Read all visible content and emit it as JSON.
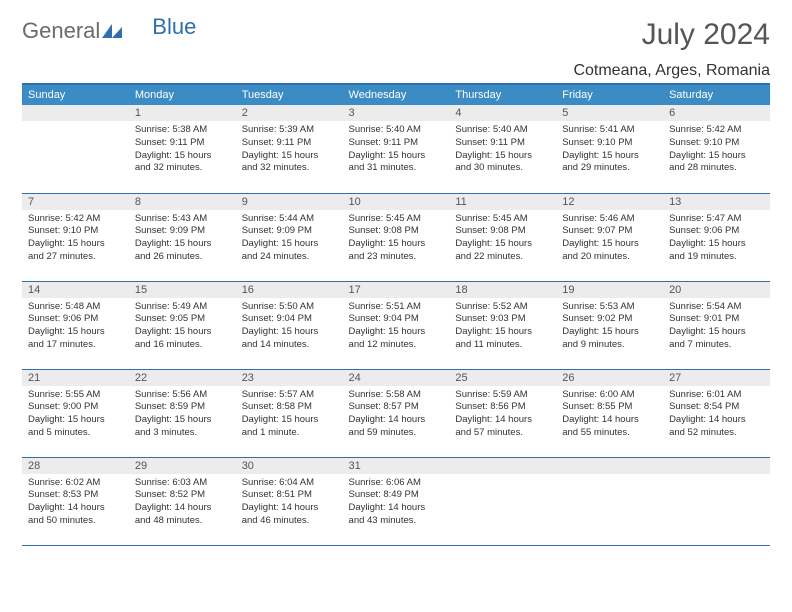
{
  "logo": {
    "word1": "General",
    "word2": "Blue"
  },
  "title": "July 2024",
  "location": "Cotmeana, Arges, Romania",
  "colors": {
    "header_bg": "#3b8bc4",
    "header_text": "#ffffff",
    "rule": "#2f6fab",
    "daynum_bg": "#ececec",
    "text": "#333333",
    "title_text": "#555555"
  },
  "day_headers": [
    "Sunday",
    "Monday",
    "Tuesday",
    "Wednesday",
    "Thursday",
    "Friday",
    "Saturday"
  ],
  "weeks": [
    [
      {
        "num": "",
        "lines": []
      },
      {
        "num": "1",
        "lines": [
          "Sunrise: 5:38 AM",
          "Sunset: 9:11 PM",
          "Daylight: 15 hours",
          "and 32 minutes."
        ]
      },
      {
        "num": "2",
        "lines": [
          "Sunrise: 5:39 AM",
          "Sunset: 9:11 PM",
          "Daylight: 15 hours",
          "and 32 minutes."
        ]
      },
      {
        "num": "3",
        "lines": [
          "Sunrise: 5:40 AM",
          "Sunset: 9:11 PM",
          "Daylight: 15 hours",
          "and 31 minutes."
        ]
      },
      {
        "num": "4",
        "lines": [
          "Sunrise: 5:40 AM",
          "Sunset: 9:11 PM",
          "Daylight: 15 hours",
          "and 30 minutes."
        ]
      },
      {
        "num": "5",
        "lines": [
          "Sunrise: 5:41 AM",
          "Sunset: 9:10 PM",
          "Daylight: 15 hours",
          "and 29 minutes."
        ]
      },
      {
        "num": "6",
        "lines": [
          "Sunrise: 5:42 AM",
          "Sunset: 9:10 PM",
          "Daylight: 15 hours",
          "and 28 minutes."
        ]
      }
    ],
    [
      {
        "num": "7",
        "lines": [
          "Sunrise: 5:42 AM",
          "Sunset: 9:10 PM",
          "Daylight: 15 hours",
          "and 27 minutes."
        ]
      },
      {
        "num": "8",
        "lines": [
          "Sunrise: 5:43 AM",
          "Sunset: 9:09 PM",
          "Daylight: 15 hours",
          "and 26 minutes."
        ]
      },
      {
        "num": "9",
        "lines": [
          "Sunrise: 5:44 AM",
          "Sunset: 9:09 PM",
          "Daylight: 15 hours",
          "and 24 minutes."
        ]
      },
      {
        "num": "10",
        "lines": [
          "Sunrise: 5:45 AM",
          "Sunset: 9:08 PM",
          "Daylight: 15 hours",
          "and 23 minutes."
        ]
      },
      {
        "num": "11",
        "lines": [
          "Sunrise: 5:45 AM",
          "Sunset: 9:08 PM",
          "Daylight: 15 hours",
          "and 22 minutes."
        ]
      },
      {
        "num": "12",
        "lines": [
          "Sunrise: 5:46 AM",
          "Sunset: 9:07 PM",
          "Daylight: 15 hours",
          "and 20 minutes."
        ]
      },
      {
        "num": "13",
        "lines": [
          "Sunrise: 5:47 AM",
          "Sunset: 9:06 PM",
          "Daylight: 15 hours",
          "and 19 minutes."
        ]
      }
    ],
    [
      {
        "num": "14",
        "lines": [
          "Sunrise: 5:48 AM",
          "Sunset: 9:06 PM",
          "Daylight: 15 hours",
          "and 17 minutes."
        ]
      },
      {
        "num": "15",
        "lines": [
          "Sunrise: 5:49 AM",
          "Sunset: 9:05 PM",
          "Daylight: 15 hours",
          "and 16 minutes."
        ]
      },
      {
        "num": "16",
        "lines": [
          "Sunrise: 5:50 AM",
          "Sunset: 9:04 PM",
          "Daylight: 15 hours",
          "and 14 minutes."
        ]
      },
      {
        "num": "17",
        "lines": [
          "Sunrise: 5:51 AM",
          "Sunset: 9:04 PM",
          "Daylight: 15 hours",
          "and 12 minutes."
        ]
      },
      {
        "num": "18",
        "lines": [
          "Sunrise: 5:52 AM",
          "Sunset: 9:03 PM",
          "Daylight: 15 hours",
          "and 11 minutes."
        ]
      },
      {
        "num": "19",
        "lines": [
          "Sunrise: 5:53 AM",
          "Sunset: 9:02 PM",
          "Daylight: 15 hours",
          "and 9 minutes."
        ]
      },
      {
        "num": "20",
        "lines": [
          "Sunrise: 5:54 AM",
          "Sunset: 9:01 PM",
          "Daylight: 15 hours",
          "and 7 minutes."
        ]
      }
    ],
    [
      {
        "num": "21",
        "lines": [
          "Sunrise: 5:55 AM",
          "Sunset: 9:00 PM",
          "Daylight: 15 hours",
          "and 5 minutes."
        ]
      },
      {
        "num": "22",
        "lines": [
          "Sunrise: 5:56 AM",
          "Sunset: 8:59 PM",
          "Daylight: 15 hours",
          "and 3 minutes."
        ]
      },
      {
        "num": "23",
        "lines": [
          "Sunrise: 5:57 AM",
          "Sunset: 8:58 PM",
          "Daylight: 15 hours",
          "and 1 minute."
        ]
      },
      {
        "num": "24",
        "lines": [
          "Sunrise: 5:58 AM",
          "Sunset: 8:57 PM",
          "Daylight: 14 hours",
          "and 59 minutes."
        ]
      },
      {
        "num": "25",
        "lines": [
          "Sunrise: 5:59 AM",
          "Sunset: 8:56 PM",
          "Daylight: 14 hours",
          "and 57 minutes."
        ]
      },
      {
        "num": "26",
        "lines": [
          "Sunrise: 6:00 AM",
          "Sunset: 8:55 PM",
          "Daylight: 14 hours",
          "and 55 minutes."
        ]
      },
      {
        "num": "27",
        "lines": [
          "Sunrise: 6:01 AM",
          "Sunset: 8:54 PM",
          "Daylight: 14 hours",
          "and 52 minutes."
        ]
      }
    ],
    [
      {
        "num": "28",
        "lines": [
          "Sunrise: 6:02 AM",
          "Sunset: 8:53 PM",
          "Daylight: 14 hours",
          "and 50 minutes."
        ]
      },
      {
        "num": "29",
        "lines": [
          "Sunrise: 6:03 AM",
          "Sunset: 8:52 PM",
          "Daylight: 14 hours",
          "and 48 minutes."
        ]
      },
      {
        "num": "30",
        "lines": [
          "Sunrise: 6:04 AM",
          "Sunset: 8:51 PM",
          "Daylight: 14 hours",
          "and 46 minutes."
        ]
      },
      {
        "num": "31",
        "lines": [
          "Sunrise: 6:06 AM",
          "Sunset: 8:49 PM",
          "Daylight: 14 hours",
          "and 43 minutes."
        ]
      },
      {
        "num": "",
        "lines": []
      },
      {
        "num": "",
        "lines": []
      },
      {
        "num": "",
        "lines": []
      }
    ]
  ]
}
